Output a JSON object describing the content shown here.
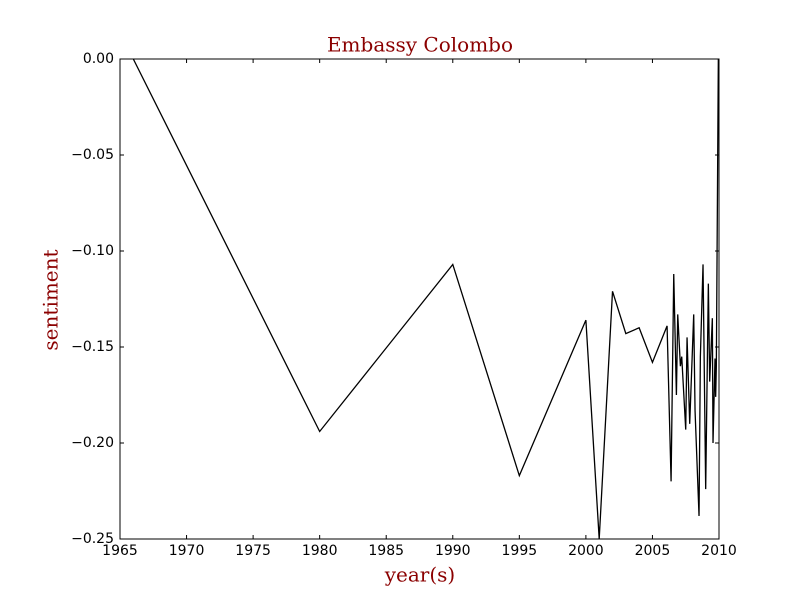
{
  "chart_data": {
    "type": "line",
    "title": "Embassy Colombo",
    "xlabel": "year(s)",
    "ylabel": "sentiment",
    "x": [
      1966.0,
      1980.0,
      1990.0,
      1995.0,
      2000.0,
      2001.0,
      2002.0,
      2003.0,
      2004.0,
      2005.0,
      2006.1,
      2006.4,
      2006.6,
      2006.8,
      2006.9,
      2007.1,
      2007.2,
      2007.5,
      2007.6,
      2007.8,
      2008.1,
      2008.2,
      2008.5,
      2008.6,
      2008.8,
      2009.0,
      2009.2,
      2009.3,
      2009.5,
      2009.55,
      2009.7,
      2009.75,
      2009.8,
      2009.95
    ],
    "series": [
      {
        "name": "sentiment",
        "color": "#000000",
        "values": [
          0.0,
          -0.194,
          -0.107,
          -0.217,
          -0.136,
          -0.25,
          -0.121,
          -0.143,
          -0.14,
          -0.158,
          -0.139,
          -0.22,
          -0.112,
          -0.175,
          -0.133,
          -0.16,
          -0.155,
          -0.193,
          -0.145,
          -0.19,
          -0.133,
          -0.183,
          -0.238,
          -0.155,
          -0.107,
          -0.224,
          -0.117,
          -0.168,
          -0.135,
          -0.2,
          -0.156,
          -0.176,
          -0.16,
          0.0
        ]
      }
    ],
    "xlim": [
      1965,
      2010
    ],
    "ylim": [
      -0.25,
      0.0
    ],
    "xticks": [
      1965,
      1970,
      1975,
      1980,
      1985,
      1990,
      1995,
      2000,
      2005,
      2010
    ],
    "yticks": [
      {
        "value": 0.0,
        "label": "0.00"
      },
      {
        "value": -0.05,
        "label": "−0.05"
      },
      {
        "value": -0.1,
        "label": "−0.10"
      },
      {
        "value": -0.15,
        "label": "−0.15"
      },
      {
        "value": -0.2,
        "label": "−0.20"
      },
      {
        "value": -0.25,
        "label": "−0.25"
      }
    ]
  }
}
